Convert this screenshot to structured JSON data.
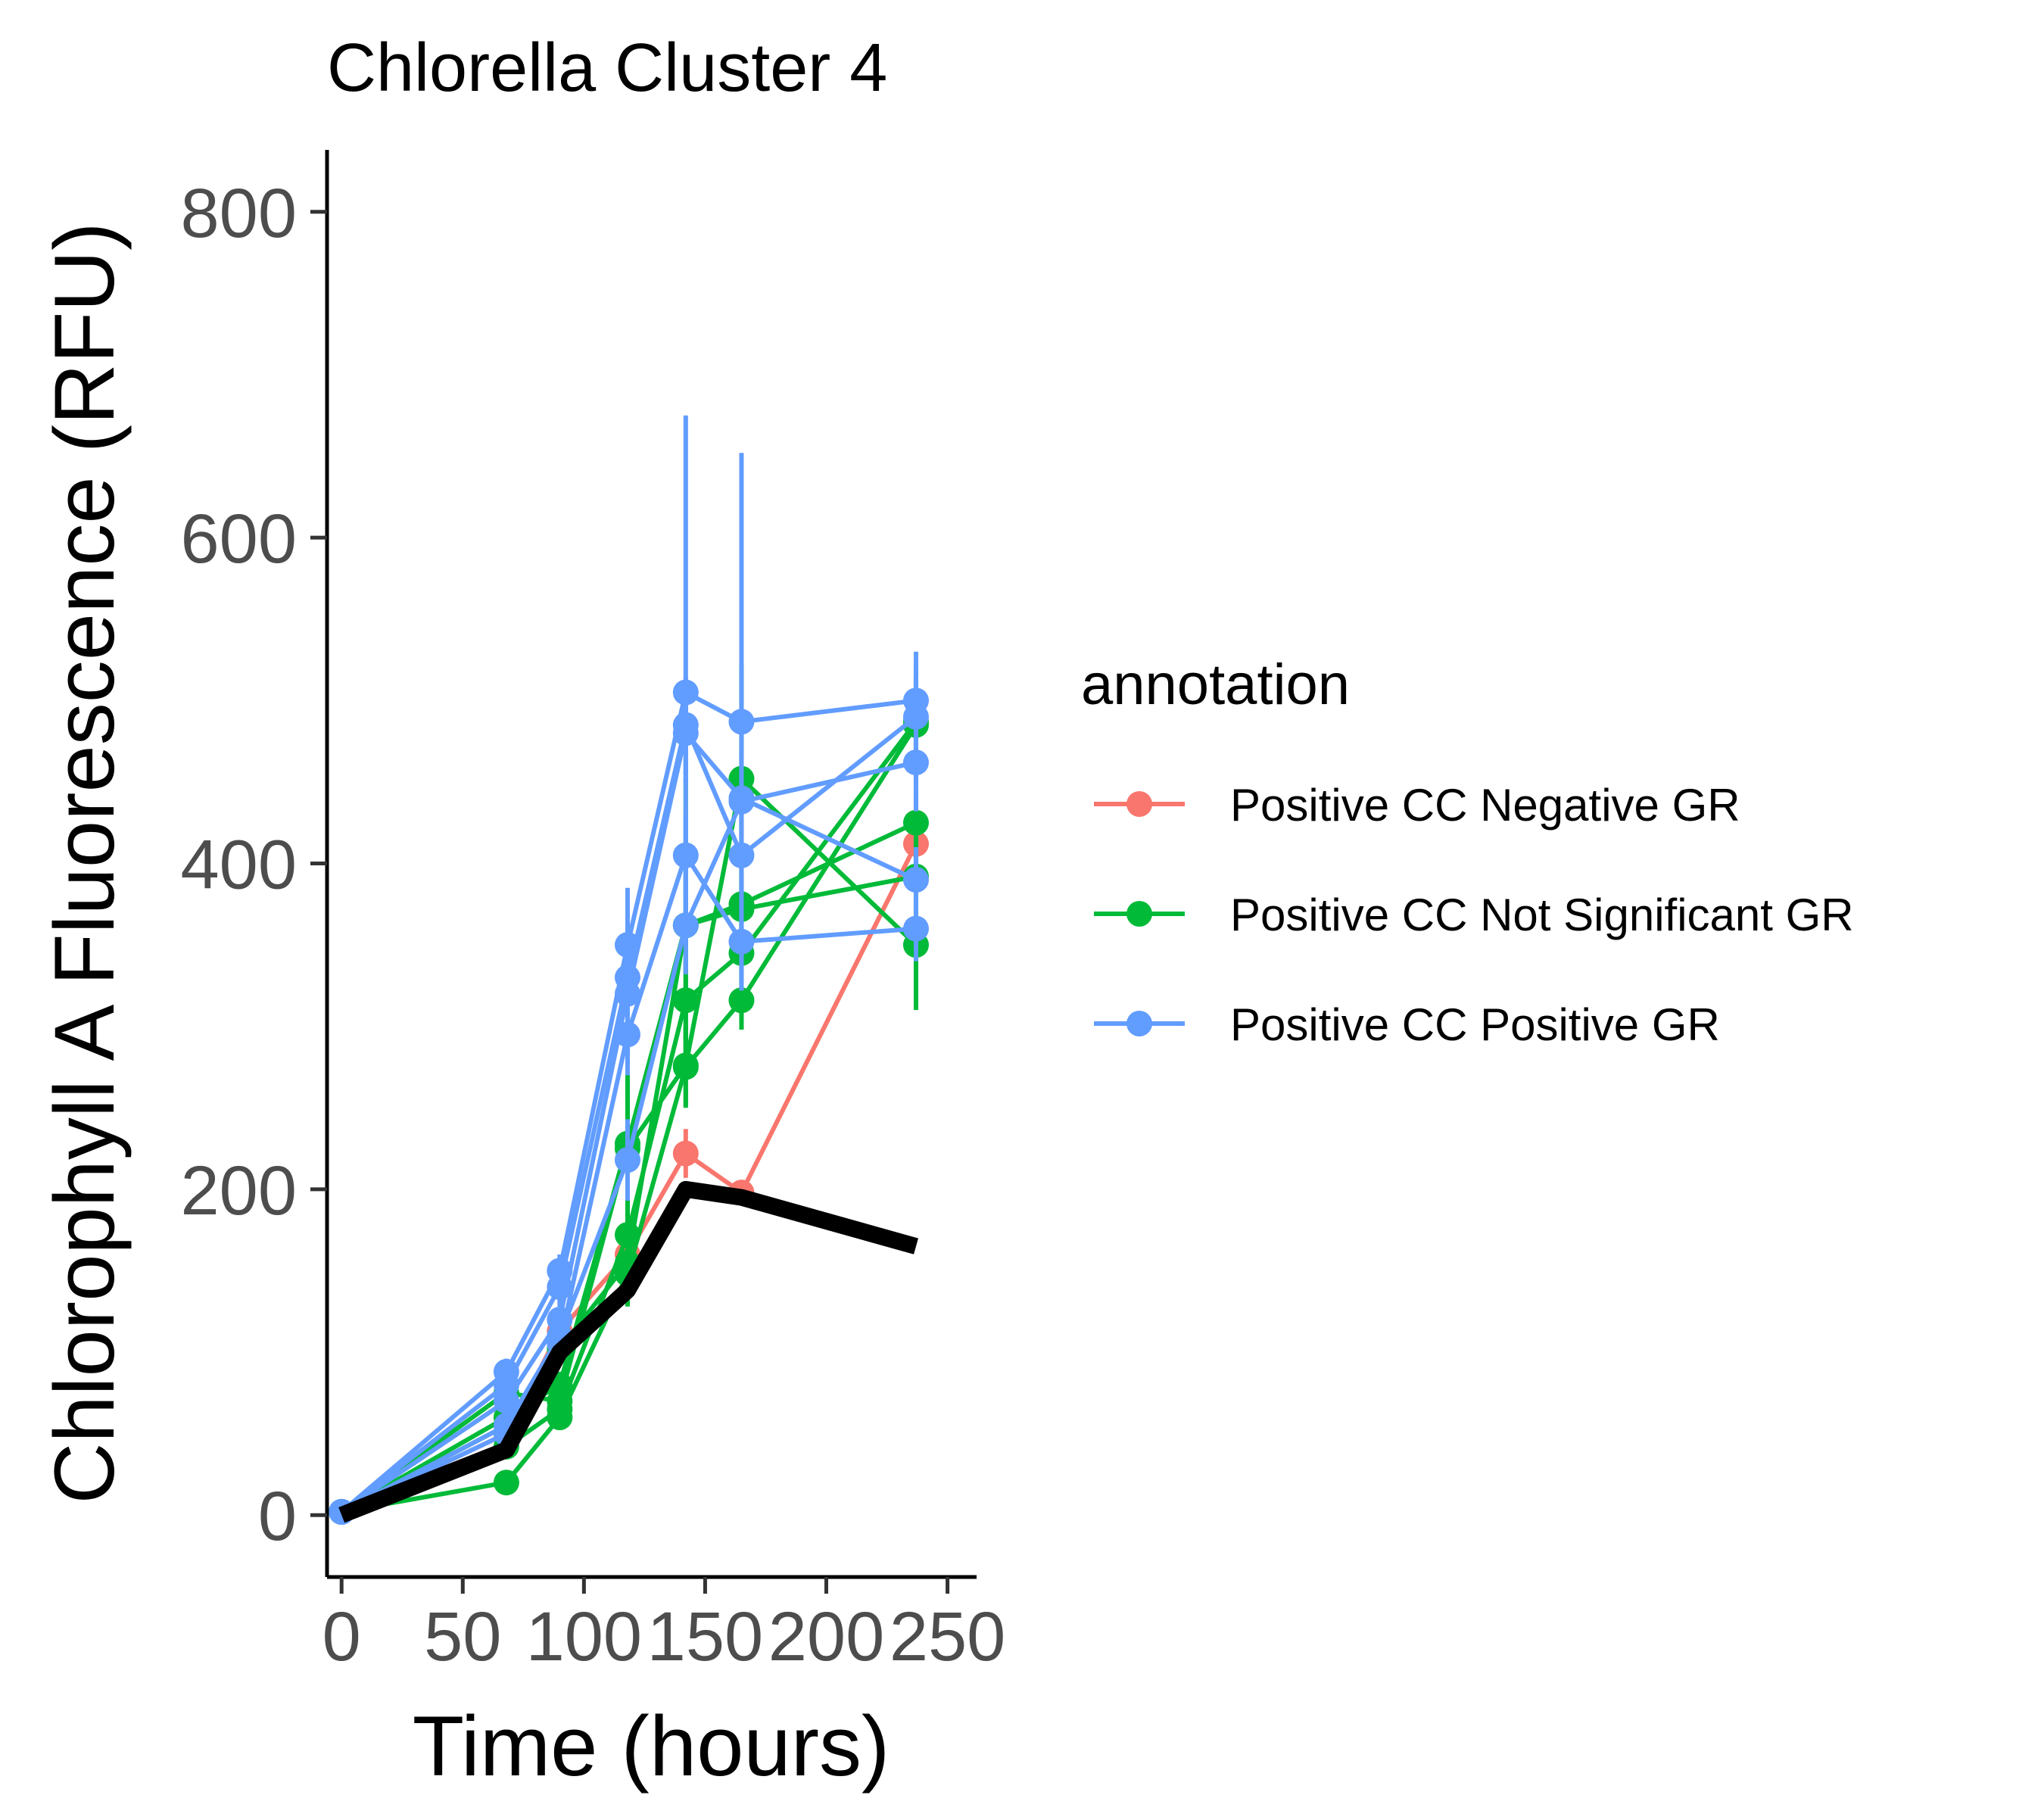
{
  "chart_data": {
    "type": "line",
    "title": "Chlorella Cluster 4",
    "xlabel": "Time (hours)",
    "ylabel": "Chlorophyll A Fluorescence (RFU)",
    "xlim": [
      -6,
      262
    ],
    "ylim": [
      -38,
      838
    ],
    "x_ticks": [
      0,
      50,
      100,
      150,
      200,
      250
    ],
    "x_tick_labels": [
      "0",
      "50",
      "100",
      "150",
      "200",
      "250"
    ],
    "y_ticks": [
      0,
      200,
      400,
      600,
      800
    ],
    "y_tick_labels": [
      "0",
      "200",
      "400",
      "600",
      "800"
    ],
    "grid": false,
    "legend": {
      "title": "annotation",
      "position": "right",
      "entries": [
        {
          "label": "Positive CC Negative GR",
          "color": "#F8766D"
        },
        {
          "label": "Positive CC Not Significant GR",
          "color": "#00BA38"
        },
        {
          "label": "Positive CC Positive GR",
          "color": "#619CFF"
        }
      ]
    },
    "reference_line": {
      "color": "#000000",
      "x": [
        0,
        68,
        90,
        118,
        142,
        165,
        237
      ],
      "y": [
        0,
        40,
        100,
        138,
        200,
        195,
        165
      ]
    },
    "series": [
      {
        "group": 0,
        "color": "#F8766D",
        "x": [
          0,
          68,
          90,
          118,
          142,
          165,
          237
        ],
        "y": [
          2,
          50,
          113,
          160,
          222,
          198,
          412
        ],
        "err": [
          0,
          5,
          8,
          10,
          15,
          6,
          30
        ]
      },
      {
        "group": 1,
        "color": "#00BA38",
        "x": [
          0,
          68,
          90,
          118,
          142,
          165,
          237
        ],
        "y": [
          2,
          20,
          60,
          148,
          275,
          316,
          485
        ],
        "err": [
          0,
          4,
          6,
          20,
          25,
          18,
          30
        ]
      },
      {
        "group": 1,
        "color": "#00BA38",
        "x": [
          0,
          68,
          90,
          118,
          142,
          165,
          237
        ],
        "y": [
          2,
          42,
          65,
          172,
          316,
          345,
          487
        ],
        "err": [
          0,
          4,
          8,
          20,
          25,
          20,
          35
        ]
      },
      {
        "group": 1,
        "color": "#00BA38",
        "x": [
          0,
          68,
          90,
          118,
          142,
          165,
          237
        ],
        "y": [
          2,
          60,
          80,
          228,
          362,
          375,
          425
        ],
        "err": [
          0,
          6,
          8,
          75,
          90,
          30,
          30
        ]
      },
      {
        "group": 1,
        "color": "#00BA38",
        "x": [
          0,
          68,
          90,
          118,
          142,
          165,
          237
        ],
        "y": [
          2,
          75,
          70,
          225,
          276,
          452,
          350
        ],
        "err": [
          0,
          8,
          8,
          30,
          25,
          70,
          40
        ]
      },
      {
        "group": 1,
        "color": "#00BA38",
        "x": [
          0,
          68,
          90,
          118,
          142,
          165,
          237
        ],
        "y": [
          2,
          55,
          102,
          155,
          362,
          372,
          392
        ],
        "err": [
          0,
          6,
          8,
          25,
          30,
          30,
          30
        ]
      },
      {
        "group": 2,
        "color": "#619CFF",
        "x": [
          0,
          68,
          90,
          118,
          142,
          165,
          237
        ],
        "y": [
          2,
          88,
          150,
          350,
          505,
          487,
          500
        ],
        "err": [
          0,
          8,
          10,
          35,
          170,
          165,
          30
        ]
      },
      {
        "group": 2,
        "color": "#619CFF",
        "x": [
          0,
          68,
          90,
          118,
          142,
          165,
          237
        ],
        "y": [
          2,
          80,
          140,
          330,
          485,
          405,
          490
        ],
        "err": [
          0,
          8,
          10,
          30,
          30,
          30,
          25
        ]
      },
      {
        "group": 2,
        "color": "#619CFF",
        "x": [
          0,
          68,
          90,
          118,
          142,
          165,
          237
        ],
        "y": [
          2,
          70,
          120,
          320,
          480,
          440,
          390
        ],
        "err": [
          0,
          6,
          10,
          30,
          30,
          30,
          20
        ]
      },
      {
        "group": 2,
        "color": "#619CFF",
        "x": [
          0,
          68,
          90,
          118,
          142,
          165,
          237
        ],
        "y": [
          2,
          50,
          105,
          295,
          405,
          352,
          360
        ],
        "err": [
          0,
          6,
          8,
          25,
          25,
          25,
          20
        ]
      },
      {
        "group": 2,
        "color": "#619CFF",
        "x": [
          0,
          68,
          90,
          118,
          142,
          165,
          237
        ],
        "y": [
          2,
          55,
          110,
          218,
          362,
          438,
          462
        ],
        "err": [
          0,
          6,
          8,
          25,
          30,
          30,
          30
        ]
      }
    ]
  }
}
